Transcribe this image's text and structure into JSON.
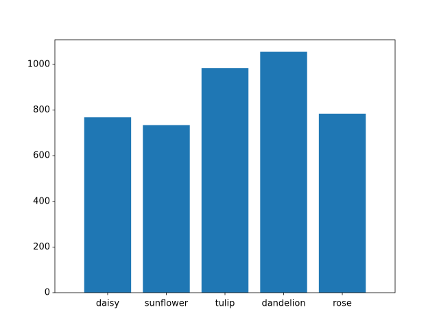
{
  "chart_data": {
    "type": "bar",
    "categories": [
      "daisy",
      "sunflower",
      "tulip",
      "dandelion",
      "rose"
    ],
    "values": [
      768,
      734,
      984,
      1055,
      784
    ],
    "ylim": [
      0,
      1107.75
    ],
    "yticks": [
      0,
      200,
      400,
      600,
      800,
      1000
    ],
    "grid": false,
    "colors": {
      "bar": "#1f77b4",
      "axis": "#000000"
    }
  }
}
